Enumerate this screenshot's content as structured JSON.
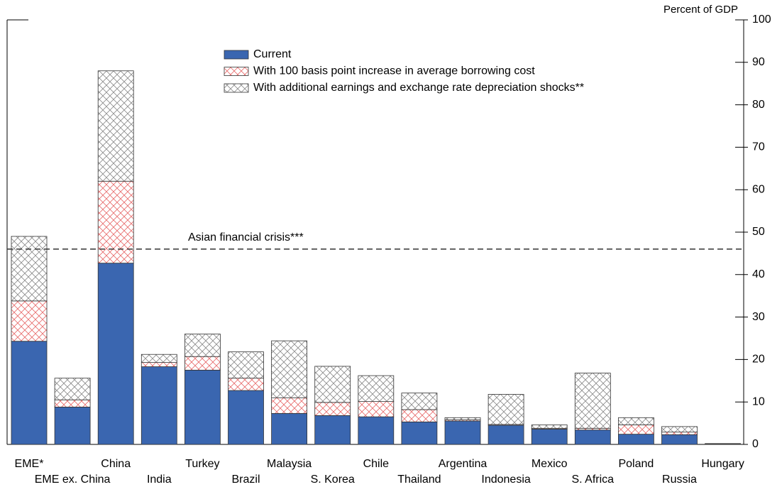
{
  "chart_data": {
    "type": "stacked_bar",
    "y_axis_label": "Percent of GDP",
    "categories": [
      "EME*",
      "EME ex. China",
      "China",
      "India",
      "Turkey",
      "Brazil",
      "Malaysia",
      "S. Korea",
      "Chile",
      "Thailand",
      "Argentina",
      "Indonesia",
      "Mexico",
      "S. Africa",
      "Poland",
      "Russia",
      "Hungary"
    ],
    "series": [
      {
        "name": "Current",
        "color": "#3a66b0",
        "values": [
          24.3,
          8.8,
          42.7,
          18.3,
          17.5,
          12.7,
          7.3,
          6.8,
          6.5,
          5.3,
          5.5,
          4.5,
          3.6,
          3.4,
          2.4,
          2.3,
          0.1
        ]
      },
      {
        "name": "With 100 basis point increase in average borrowing cost",
        "color": "#e86a6a",
        "values": [
          9.5,
          1.7,
          19.3,
          1.0,
          3.2,
          2.9,
          3.7,
          3.1,
          3.6,
          2.9,
          0.3,
          0.2,
          0.2,
          0.4,
          2.2,
          0.6,
          0
        ]
      },
      {
        "name": "With additional earnings and exchange rate depreciation shocks**",
        "color": "#8a8a8a",
        "values": [
          15.2,
          5.1,
          26.0,
          1.9,
          5.3,
          6.2,
          13.4,
          8.5,
          6.1,
          3.9,
          0.5,
          7.1,
          0.8,
          13.0,
          1.7,
          1.3,
          0.1
        ]
      }
    ],
    "ylim": [
      0,
      100
    ],
    "yticks": [
      0,
      10,
      20,
      30,
      40,
      50,
      60,
      70,
      80,
      90,
      100
    ],
    "y_axis_side": "right",
    "reference_line": {
      "value": 46,
      "label": "Asian financial crisis***"
    }
  }
}
